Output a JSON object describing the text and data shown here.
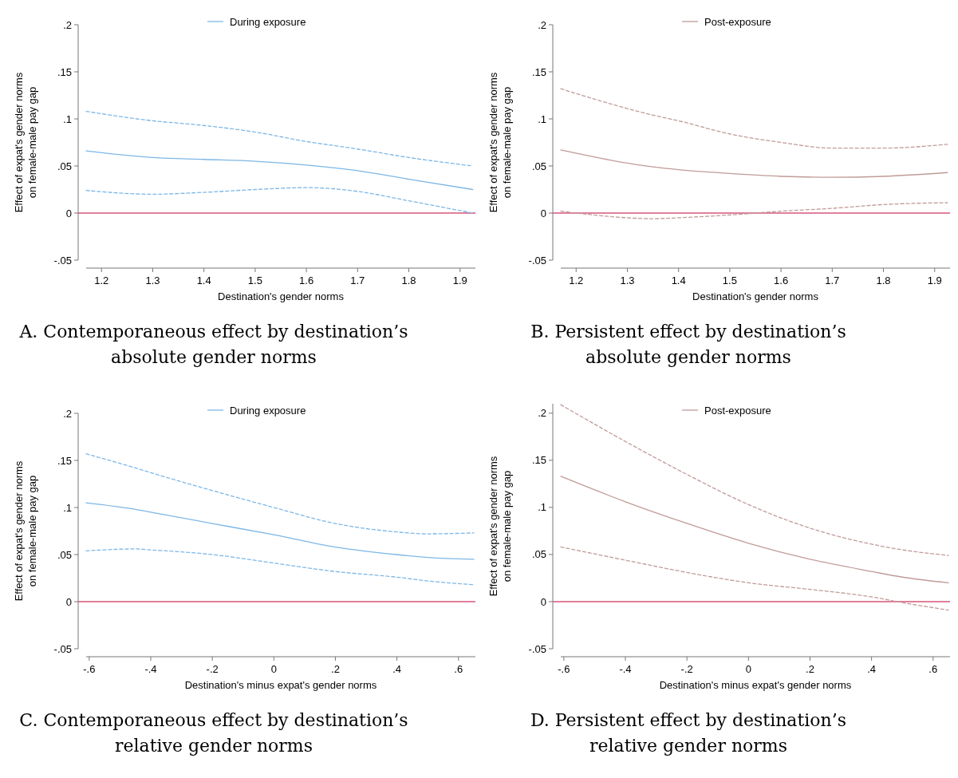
{
  "chart_data": [
    {
      "type": "line",
      "title": "A. Contemporaneous effect by destination’s absolute gender norms",
      "xlabel": "Destination's gender norms",
      "ylabel": "Effect of expat's gender norms on female-male pay gap",
      "legend": "top",
      "grid": false,
      "marker": "none",
      "x": [
        1.17,
        1.3,
        1.4,
        1.5,
        1.6,
        1.7,
        1.8,
        1.925
      ],
      "xlim": [
        1.17,
        1.93
      ],
      "xticks": [
        {
          "value": 1.2,
          "label": "1.2"
        },
        {
          "value": 1.3,
          "label": "1.3"
        },
        {
          "value": 1.4,
          "label": "1.4"
        },
        {
          "value": 1.5,
          "label": "1.5"
        },
        {
          "value": 1.6,
          "label": "1.6"
        },
        {
          "value": 1.7,
          "label": "1.7"
        },
        {
          "value": 1.8,
          "label": "1.8"
        },
        {
          "value": 1.9,
          "label": "1.9"
        }
      ],
      "ylim": [
        -0.05,
        0.2
      ],
      "yticks": [
        {
          "value": -0.05,
          "label": "-.05"
        },
        {
          "value": 0,
          "label": "0"
        },
        {
          "value": 0.05,
          "label": ".05"
        },
        {
          "value": 0.1,
          "label": ".1"
        },
        {
          "value": 0.15,
          "label": ".15"
        },
        {
          "value": 0.2,
          "label": ".2"
        }
      ],
      "ref_lines": [
        {
          "axis": "y",
          "value": 0,
          "color": "#d6567a"
        }
      ],
      "series": [
        {
          "name": "During exposure",
          "color": "#7db7e6",
          "line_style": "solid",
          "values": [
            0.066,
            0.059,
            0.057,
            0.055,
            0.051,
            0.045,
            0.036,
            0.025
          ]
        },
        {
          "color": "#7db7e6",
          "line_style": "dashed",
          "values": [
            0.108,
            0.098,
            0.093,
            0.086,
            0.076,
            0.068,
            0.059,
            0.05
          ]
        },
        {
          "color": "#7db7e6",
          "line_style": "dashed",
          "values": [
            0.024,
            0.02,
            0.022,
            0.025,
            0.027,
            0.023,
            0.013,
            0.0
          ]
        }
      ]
    },
    {
      "type": "line",
      "title": "B. Persistent effect by destination’s absolute gender norms",
      "xlabel": "Destination's gender norms",
      "ylabel": "Effect of expat's gender norms on female-male pay gap",
      "legend": "top",
      "grid": false,
      "marker": "none",
      "x": [
        1.17,
        1.3,
        1.35,
        1.4,
        1.5,
        1.6,
        1.7,
        1.8,
        1.925
      ],
      "xlim": [
        1.17,
        1.93
      ],
      "xticks": [
        {
          "value": 1.2,
          "label": "1.2"
        },
        {
          "value": 1.3,
          "label": "1.3"
        },
        {
          "value": 1.4,
          "label": "1.4"
        },
        {
          "value": 1.5,
          "label": "1.5"
        },
        {
          "value": 1.6,
          "label": "1.6"
        },
        {
          "value": 1.7,
          "label": "1.7"
        },
        {
          "value": 1.8,
          "label": "1.8"
        },
        {
          "value": 1.9,
          "label": "1.9"
        }
      ],
      "ylim": [
        -0.05,
        0.2
      ],
      "yticks": [
        {
          "value": -0.05,
          "label": "-.05"
        },
        {
          "value": 0,
          "label": "0"
        },
        {
          "value": 0.05,
          "label": ".05"
        },
        {
          "value": 0.1,
          "label": ".1"
        },
        {
          "value": 0.15,
          "label": ".15"
        },
        {
          "value": 0.2,
          "label": ".2"
        }
      ],
      "ref_lines": [
        {
          "axis": "y",
          "value": 0,
          "color": "#d6567a"
        }
      ],
      "series": [
        {
          "name": "Post-exposure",
          "color": "#c09b98",
          "line_style": "solid",
          "values": [
            0.067,
            0.053,
            0.049,
            0.046,
            0.042,
            0.039,
            0.038,
            0.039,
            0.043
          ]
        },
        {
          "color": "#c09b98",
          "line_style": "dashed",
          "values": [
            0.132,
            0.111,
            0.104,
            0.098,
            0.084,
            0.075,
            0.069,
            0.069,
            0.073
          ]
        },
        {
          "color": "#c09b98",
          "line_style": "dashed",
          "values": [
            0.002,
            -0.005,
            -0.006,
            -0.005,
            -0.002,
            0.002,
            0.005,
            0.009,
            0.011
          ]
        }
      ]
    },
    {
      "type": "line",
      "title": "C. Contemporaneous effect by destination’s relative gender norms",
      "xlabel": "Destination's minus expat's gender norms",
      "ylabel": "Effect of expat's gender norms on female-male pay gap",
      "legend": "top",
      "grid": false,
      "marker": "none",
      "x": [
        -0.61,
        -0.45,
        -0.4,
        -0.2,
        0,
        0.2,
        0.4,
        0.5,
        0.65
      ],
      "xlim": [
        -0.61,
        0.655
      ],
      "xticks": [
        {
          "value": -0.6,
          "label": "-.6"
        },
        {
          "value": -0.4,
          "label": "-.4"
        },
        {
          "value": -0.2,
          "label": "-.2"
        },
        {
          "value": 0,
          "label": "0"
        },
        {
          "value": 0.2,
          "label": ".2"
        },
        {
          "value": 0.4,
          "label": ".4"
        },
        {
          "value": 0.6,
          "label": ".6"
        }
      ],
      "ylim": [
        -0.05,
        0.2
      ],
      "yticks": [
        {
          "value": -0.05,
          "label": "-.05"
        },
        {
          "value": 0,
          "label": "0"
        },
        {
          "value": 0.05,
          "label": ".05"
        },
        {
          "value": 0.1,
          "label": ".1"
        },
        {
          "value": 0.15,
          "label": ".15"
        },
        {
          "value": 0.2,
          "label": ".2"
        }
      ],
      "ref_lines": [
        {
          "axis": "y",
          "value": 0,
          "color": "#d6567a"
        }
      ],
      "series": [
        {
          "name": "During exposure",
          "color": "#7db7e6",
          "line_style": "solid",
          "values": [
            0.105,
            0.098,
            0.095,
            0.083,
            0.071,
            0.058,
            0.05,
            0.047,
            0.045
          ]
        },
        {
          "color": "#7db7e6",
          "line_style": "dashed",
          "values": [
            0.157,
            0.142,
            0.137,
            0.118,
            0.1,
            0.083,
            0.074,
            0.072,
            0.073
          ]
        },
        {
          "color": "#7db7e6",
          "line_style": "dashed",
          "values": [
            0.054,
            0.056,
            0.055,
            0.05,
            0.041,
            0.032,
            0.026,
            0.022,
            0.018
          ]
        }
      ]
    },
    {
      "type": "line",
      "title": "D. Persistent effect by destination’s relative gender norms",
      "xlabel": "Destination's minus expat's gender norms",
      "ylabel": "Effect of expat's gender norms on female-male pay gap",
      "legend": "top",
      "grid": false,
      "marker": "none",
      "x": [
        -0.61,
        -0.4,
        -0.2,
        0,
        0.2,
        0.4,
        0.5,
        0.65
      ],
      "xlim": [
        -0.61,
        0.655
      ],
      "xticks": [
        {
          "value": -0.6,
          "label": "-.6"
        },
        {
          "value": -0.4,
          "label": "-.4"
        },
        {
          "value": -0.2,
          "label": "-.2"
        },
        {
          "value": 0,
          "label": "0"
        },
        {
          "value": 0.2,
          "label": ".2"
        },
        {
          "value": 0.4,
          "label": ".4"
        },
        {
          "value": 0.6,
          "label": ".6"
        }
      ],
      "ylim": [
        -0.05,
        0.21
      ],
      "yticks": [
        {
          "value": -0.05,
          "label": "-.05"
        },
        {
          "value": 0,
          "label": "0"
        },
        {
          "value": 0.05,
          "label": ".05"
        },
        {
          "value": 0.1,
          "label": ".1"
        },
        {
          "value": 0.15,
          "label": ".15"
        },
        {
          "value": 0.2,
          "label": ".2"
        }
      ],
      "ref_lines": [
        {
          "axis": "y",
          "value": 0,
          "color": "#d6567a"
        }
      ],
      "series": [
        {
          "name": "Post-exposure",
          "color": "#c09b98",
          "line_style": "solid",
          "values": [
            0.133,
            0.106,
            0.083,
            0.062,
            0.045,
            0.032,
            0.026,
            0.02
          ]
        },
        {
          "color": "#c09b98",
          "line_style": "dashed",
          "values": [
            0.209,
            0.17,
            0.135,
            0.103,
            0.078,
            0.061,
            0.055,
            0.049
          ]
        },
        {
          "color": "#c09b98",
          "line_style": "dashed",
          "values": [
            0.058,
            0.044,
            0.031,
            0.02,
            0.013,
            0.005,
            -0.001,
            -0.009
          ]
        }
      ]
    }
  ]
}
